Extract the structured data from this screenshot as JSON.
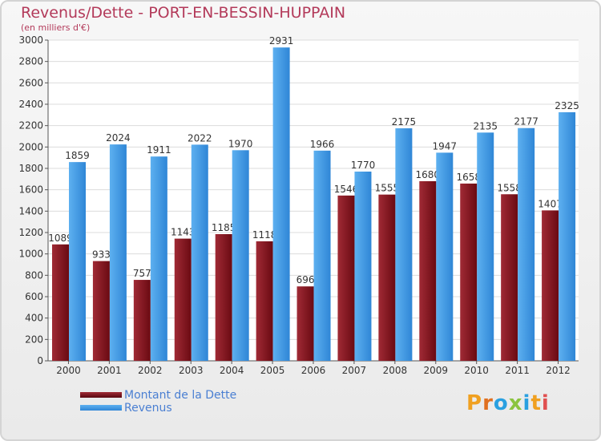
{
  "header": {
    "title": "Revenus/Dette - PORT-EN-BESSIN-HUPPAIN",
    "unit": "(en milliers d'€)"
  },
  "colors": {
    "title": "#b33a5a",
    "dette": "#7a0f18",
    "revenus": "#3e95df",
    "legend_text": "#4a7fd2"
  },
  "logo": {
    "text": "Proxiti"
  },
  "chart_data": {
    "type": "bar",
    "title": "Revenus/Dette - PORT-EN-BESSIN-HUPPAIN",
    "ylabel": "(en milliers d'€)",
    "xlabel": "",
    "ylim": [
      0,
      3000
    ],
    "ytick_step": 200,
    "grid": true,
    "legend_position": "bottom-left",
    "categories": [
      "2000",
      "2001",
      "2002",
      "2003",
      "2004",
      "2005",
      "2006",
      "2007",
      "2008",
      "2009",
      "2010",
      "2011",
      "2012"
    ],
    "series": [
      {
        "name": "Montant de la Dette",
        "color": "#7a0f18",
        "values": [
          1089,
          933,
          757,
          1143,
          1185,
          1118,
          696,
          1546,
          1555,
          1680,
          1658,
          1558,
          1407
        ]
      },
      {
        "name": "Revenus",
        "color": "#3e95df",
        "values": [
          1859,
          2024,
          1911,
          2022,
          1970,
          2931,
          1966,
          1770,
          2175,
          1947,
          2135,
          2177,
          2325
        ]
      }
    ]
  }
}
